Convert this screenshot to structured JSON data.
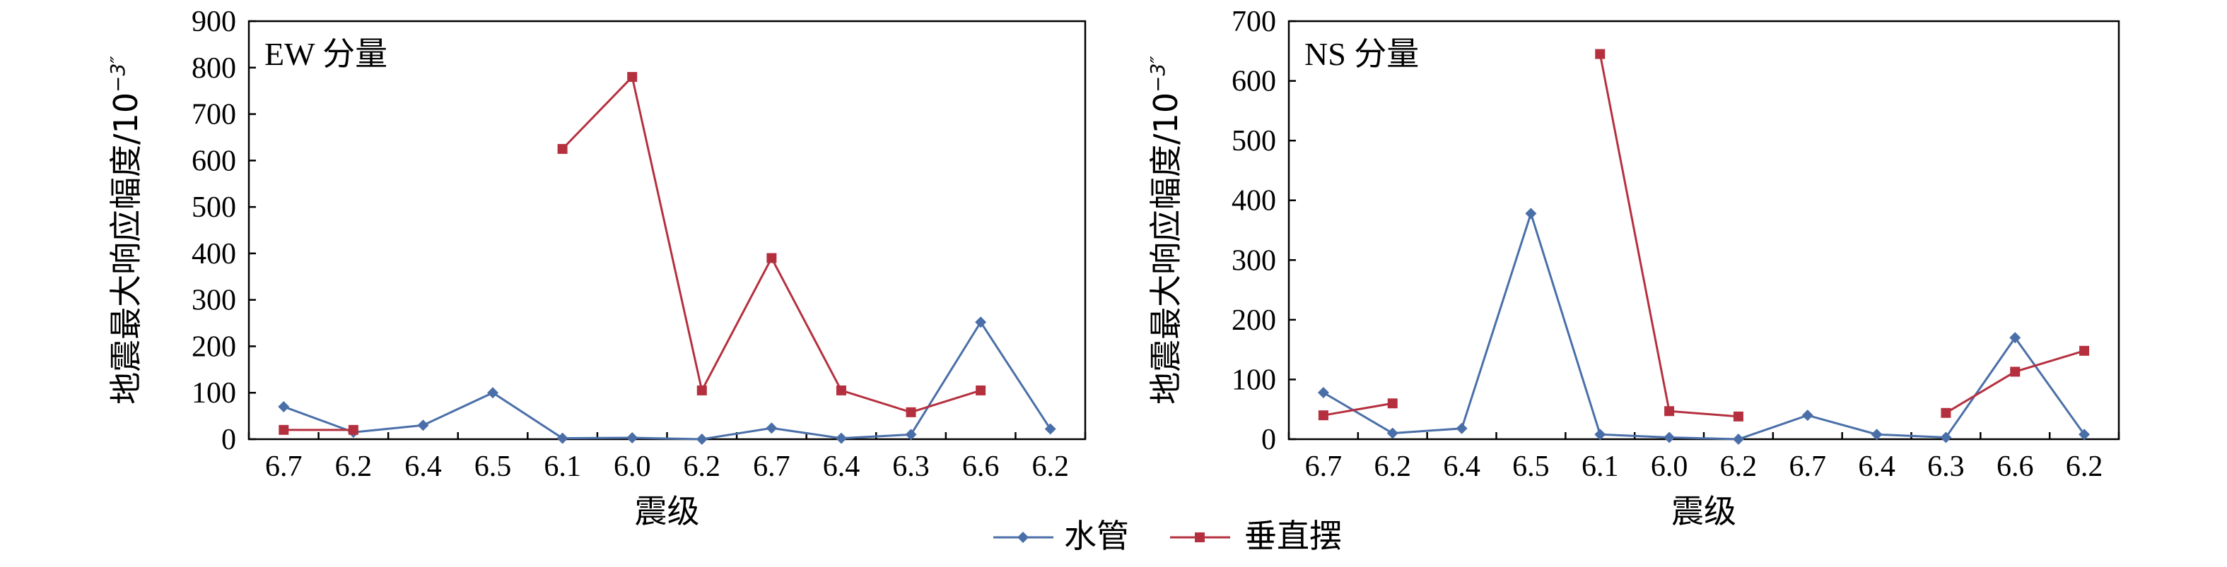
{
  "legend": [
    {
      "label": "水管",
      "color": "#4a6fa8",
      "marker": "diamond"
    },
    {
      "label": "垂直摆",
      "color": "#b5303f",
      "marker": "square"
    }
  ],
  "chart_data": [
    {
      "type": "line",
      "title": "EW 分量",
      "xlabel": "震级",
      "ylabel": "地震最大响应幅度/10",
      "ylabel_sup": "−3″",
      "categories": [
        "6.7",
        "6.2",
        "6.4",
        "6.5",
        "6.1",
        "6.0",
        "6.2",
        "6.7",
        "6.4",
        "6.3",
        "6.6",
        "6.2"
      ],
      "ylim": [
        0,
        900
      ],
      "yticks": [
        "0",
        "100",
        "200",
        "300",
        "400",
        "500",
        "600",
        "700",
        "800",
        "900"
      ],
      "series": [
        {
          "name": "水管",
          "values": [
            70,
            15,
            30,
            100,
            2,
            3,
            0,
            24,
            2,
            10,
            252,
            22
          ]
        },
        {
          "name": "垂直摆",
          "values": [
            20,
            20,
            null,
            null,
            625,
            780,
            105,
            390,
            105,
            58,
            105,
            null
          ]
        }
      ]
    },
    {
      "type": "line",
      "title": "NS 分量",
      "xlabel": "震级",
      "ylabel": "地震最大响应幅度/10",
      "ylabel_sup": "−3″",
      "categories": [
        "6.7",
        "6.2",
        "6.4",
        "6.5",
        "6.1",
        "6.0",
        "6.2",
        "6.7",
        "6.4",
        "6.3",
        "6.6",
        "6.2"
      ],
      "ylim": [
        0,
        700
      ],
      "yticks": [
        "0",
        "100",
        "200",
        "300",
        "400",
        "500",
        "600",
        "700"
      ],
      "series": [
        {
          "name": "水管",
          "values": [
            78,
            10,
            18,
            378,
            8,
            3,
            0,
            40,
            8,
            3,
            170,
            8
          ]
        },
        {
          "name": "垂直摆",
          "values": [
            40,
            60,
            null,
            null,
            645,
            47,
            38,
            null,
            null,
            44,
            113,
            148
          ]
        }
      ]
    }
  ]
}
